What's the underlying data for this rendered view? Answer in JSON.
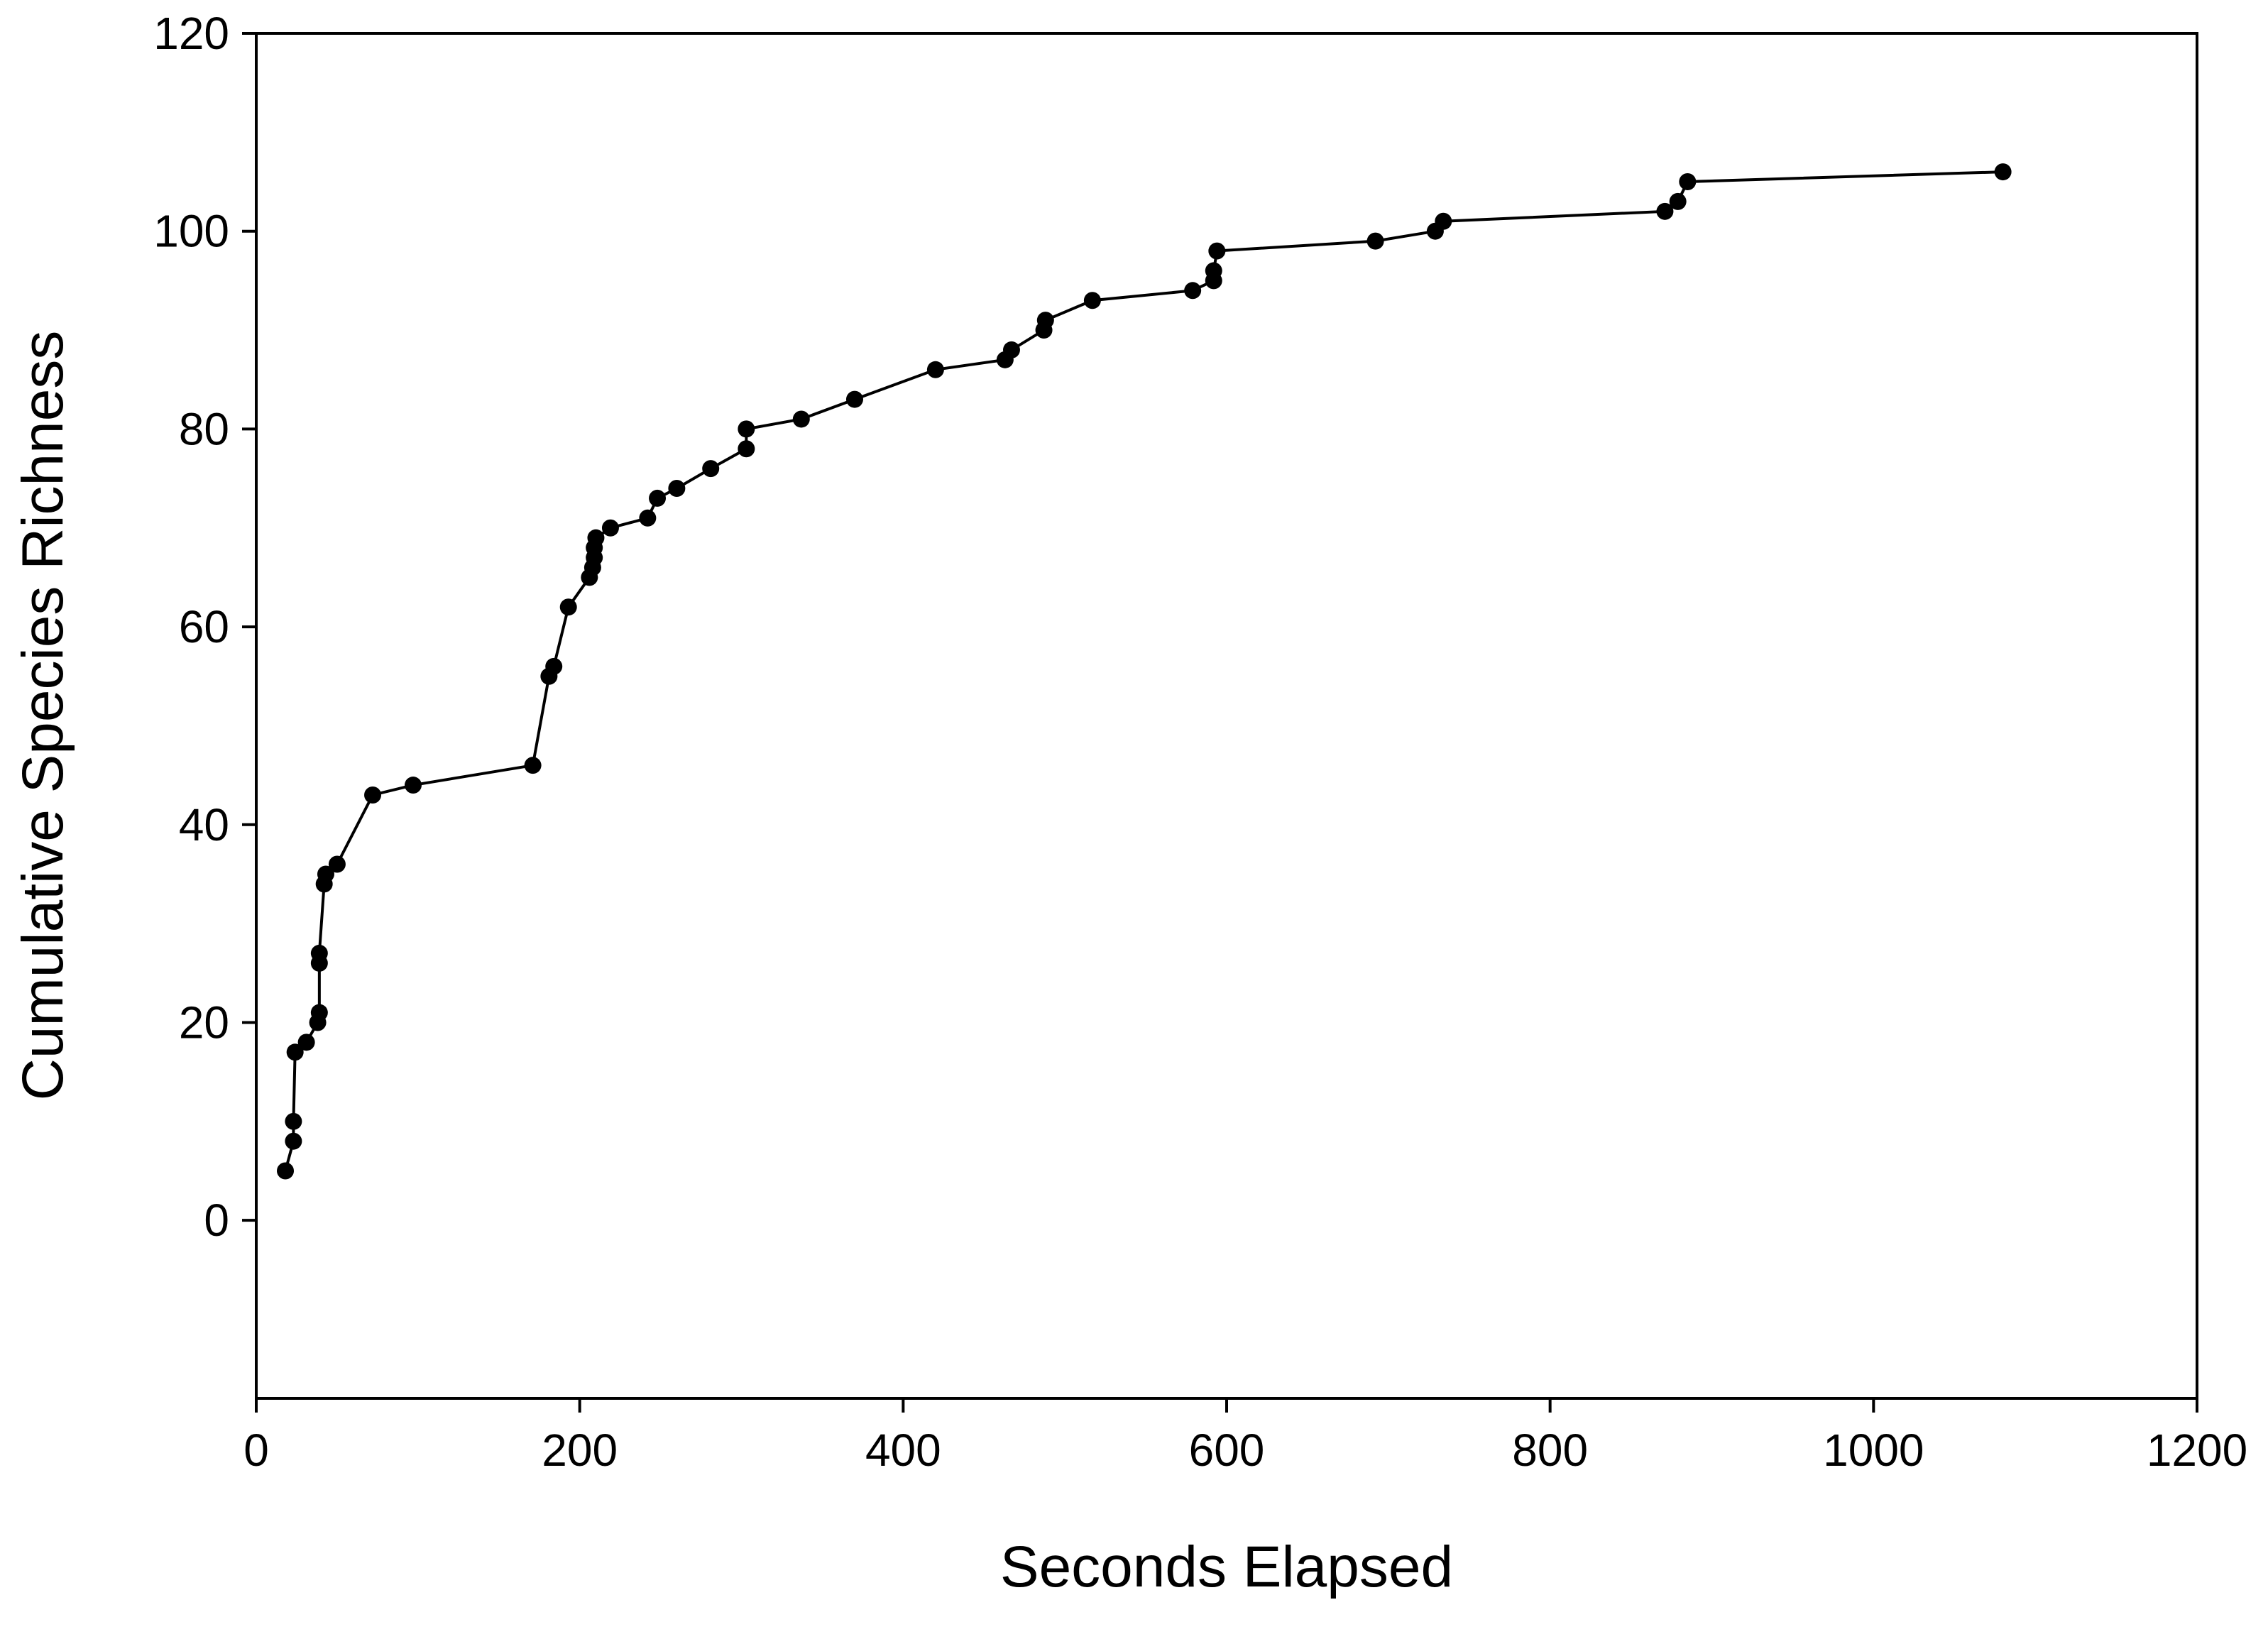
{
  "chart_data": {
    "type": "line",
    "x_label": "Seconds Elapsed",
    "y_label": "Cumulative Species Richness",
    "xlim": [
      0,
      1200
    ],
    "xticks": [
      0,
      200,
      400,
      600,
      800,
      1000,
      1200
    ],
    "ylim": [
      -18,
      120
    ],
    "yticks": [
      0,
      20,
      40,
      60,
      80,
      100,
      120
    ],
    "color": "#000000",
    "x": [
      18,
      23,
      23,
      24,
      31,
      38,
      39,
      39,
      39,
      42,
      43,
      50,
      72,
      97,
      171,
      181,
      184,
      193,
      206,
      208,
      209,
      209,
      210,
      219,
      242,
      248,
      260,
      281,
      303,
      303,
      337,
      370,
      420,
      463,
      467,
      487,
      488,
      517,
      579,
      592,
      592,
      594,
      692,
      729,
      734,
      871,
      879,
      885,
      1080
    ],
    "values": [
      5,
      8,
      10,
      17,
      18,
      20,
      21,
      26,
      27,
      34,
      35,
      36,
      43,
      44,
      46,
      55,
      56,
      62,
      65,
      66,
      67,
      68,
      69,
      70,
      71,
      73,
      74,
      76,
      78,
      80,
      81,
      83,
      86,
      87,
      88,
      90,
      91,
      93,
      94,
      95,
      96,
      98,
      99,
      100,
      101,
      102,
      103,
      105,
      106
    ]
  }
}
